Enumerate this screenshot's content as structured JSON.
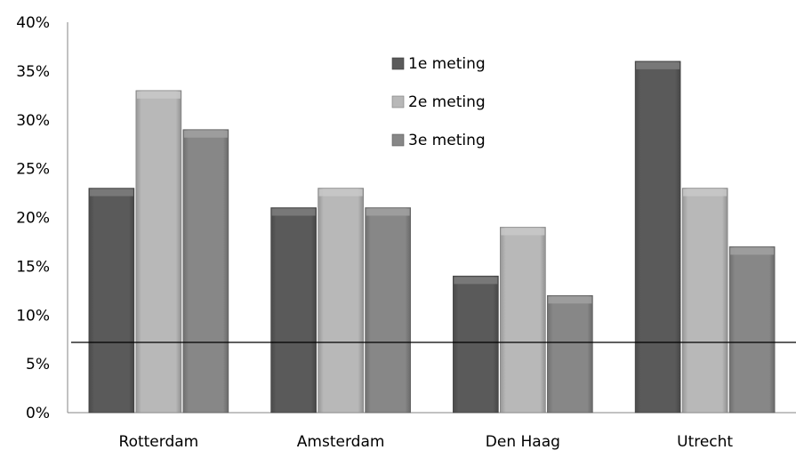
{
  "chart_data": {
    "type": "bar",
    "title": "",
    "xlabel": "",
    "ylabel": "",
    "categories": [
      "Rotterdam",
      "Amsterdam",
      "Den Haag",
      "Utrecht"
    ],
    "series": [
      {
        "name": "1e meting",
        "values": [
          23,
          21,
          14,
          36
        ],
        "color": "#5a5a5a"
      },
      {
        "name": "2e meting",
        "values": [
          33,
          23,
          19,
          23
        ],
        "color": "#b8b8b8"
      },
      {
        "name": "3e meting",
        "values": [
          29,
          21,
          12,
          17
        ],
        "color": "#878787"
      }
    ],
    "ylim": [
      0,
      40
    ],
    "yticks": [
      "0%",
      "5%",
      "10%",
      "15%",
      "20%",
      "25%",
      "30%",
      "35%",
      "40%"
    ],
    "reference_line": 7.2,
    "grid": false,
    "legend_position": "top-center"
  }
}
